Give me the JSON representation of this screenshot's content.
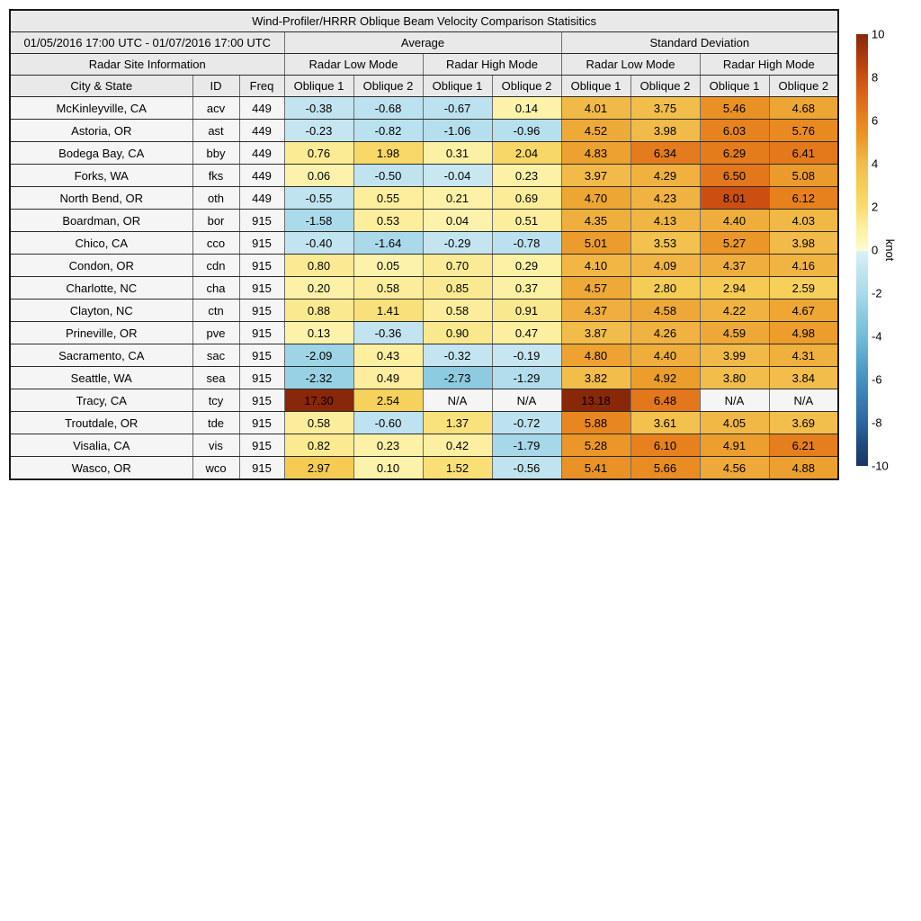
{
  "chart_data": {
    "type": "heatmap",
    "title": "Wind-Profiler/HRRR Oblique Beam Velocity Comparison Statisitics",
    "date_range": "01/05/2016 17:00 UTC - 01/07/2016 17:00 UTC",
    "group_headers": {
      "average": "Average",
      "std": "Standard Deviation",
      "site_info": "Radar Site Information",
      "low_mode": "Radar Low Mode",
      "high_mode": "Radar High Mode"
    },
    "column_headers": {
      "city": "City & State",
      "id": "ID",
      "freq": "Freq",
      "oblique1": "Oblique 1",
      "oblique2": "Oblique 2"
    },
    "value_columns": [
      "avg-low-oblique1",
      "avg-low-oblique2",
      "avg-high-oblique1",
      "avg-high-oblique2",
      "std-low-oblique1",
      "std-low-oblique2",
      "std-high-oblique1",
      "std-high-oblique2"
    ],
    "na_label": "N/A",
    "rows": [
      {
        "city": "McKinleyville, CA",
        "id": "acv",
        "freq": "449",
        "values": [
          "-0.38",
          "-0.68",
          "-0.67",
          "0.14",
          "4.01",
          "3.75",
          "5.46",
          "4.68"
        ]
      },
      {
        "city": "Astoria, OR",
        "id": "ast",
        "freq": "449",
        "values": [
          "-0.23",
          "-0.82",
          "-1.06",
          "-0.96",
          "4.52",
          "3.98",
          "6.03",
          "5.76"
        ]
      },
      {
        "city": "Bodega Bay, CA",
        "id": "bby",
        "freq": "449",
        "values": [
          "0.76",
          "1.98",
          "0.31",
          "2.04",
          "4.83",
          "6.34",
          "6.29",
          "6.41"
        ]
      },
      {
        "city": "Forks, WA",
        "id": "fks",
        "freq": "449",
        "values": [
          "0.06",
          "-0.50",
          "-0.04",
          "0.23",
          "3.97",
          "4.29",
          "6.50",
          "5.08"
        ]
      },
      {
        "city": "North Bend, OR",
        "id": "oth",
        "freq": "449",
        "values": [
          "-0.55",
          "0.55",
          "0.21",
          "0.69",
          "4.70",
          "4.23",
          "8.01",
          "6.12"
        ]
      },
      {
        "city": "Boardman, OR",
        "id": "bor",
        "freq": "915",
        "values": [
          "-1.58",
          "0.53",
          "0.04",
          "0.51",
          "4.35",
          "4.13",
          "4.40",
          "4.03"
        ]
      },
      {
        "city": "Chico, CA",
        "id": "cco",
        "freq": "915",
        "values": [
          "-0.40",
          "-1.64",
          "-0.29",
          "-0.78",
          "5.01",
          "3.53",
          "5.27",
          "3.98"
        ]
      },
      {
        "city": "Condon, OR",
        "id": "cdn",
        "freq": "915",
        "values": [
          "0.80",
          "0.05",
          "0.70",
          "0.29",
          "4.10",
          "4.09",
          "4.37",
          "4.16"
        ]
      },
      {
        "city": "Charlotte, NC",
        "id": "cha",
        "freq": "915",
        "values": [
          "0.20",
          "0.58",
          "0.85",
          "0.37",
          "4.57",
          "2.80",
          "2.94",
          "2.59"
        ]
      },
      {
        "city": "Clayton, NC",
        "id": "ctn",
        "freq": "915",
        "values": [
          "0.88",
          "1.41",
          "0.58",
          "0.91",
          "4.37",
          "4.58",
          "4.22",
          "4.67"
        ]
      },
      {
        "city": "Prineville, OR",
        "id": "pve",
        "freq": "915",
        "values": [
          "0.13",
          "-0.36",
          "0.90",
          "0.47",
          "3.87",
          "4.26",
          "4.59",
          "4.98"
        ]
      },
      {
        "city": "Sacramento, CA",
        "id": "sac",
        "freq": "915",
        "values": [
          "-2.09",
          "0.43",
          "-0.32",
          "-0.19",
          "4.80",
          "4.40",
          "3.99",
          "4.31"
        ]
      },
      {
        "city": "Seattle, WA",
        "id": "sea",
        "freq": "915",
        "values": [
          "-2.32",
          "0.49",
          "-2.73",
          "-1.29",
          "3.82",
          "4.92",
          "3.80",
          "3.84"
        ]
      },
      {
        "city": "Tracy, CA",
        "id": "tcy",
        "freq": "915",
        "values": [
          "17.30",
          "2.54",
          "N/A",
          "N/A",
          "13.18",
          "6.48",
          "N/A",
          "N/A"
        ]
      },
      {
        "city": "Troutdale, OR",
        "id": "tde",
        "freq": "915",
        "values": [
          "0.58",
          "-0.60",
          "1.37",
          "-0.72",
          "5.88",
          "3.61",
          "4.05",
          "3.69"
        ]
      },
      {
        "city": "Visalia, CA",
        "id": "vis",
        "freq": "915",
        "values": [
          "0.82",
          "0.23",
          "0.42",
          "-1.79",
          "5.28",
          "6.10",
          "4.91",
          "6.21"
        ]
      },
      {
        "city": "Wasco, OR",
        "id": "wco",
        "freq": "915",
        "values": [
          "2.97",
          "0.10",
          "1.52",
          "-0.56",
          "5.41",
          "5.66",
          "4.56",
          "4.88"
        ]
      }
    ],
    "colorbar": {
      "unit": "knot",
      "min": -10,
      "max": 10,
      "ticks": [
        10,
        8,
        6,
        4,
        2,
        0,
        -2,
        -4,
        -6,
        -8,
        -10
      ],
      "colormap_stops": [
        [
          -10,
          "#1b3466"
        ],
        [
          -9,
          "#21497f"
        ],
        [
          -8,
          "#2c66a2"
        ],
        [
          -7,
          "#397bb1"
        ],
        [
          -6,
          "#4690c1"
        ],
        [
          -5,
          "#5aa7cd"
        ],
        [
          -4,
          "#74bcd8"
        ],
        [
          -3,
          "#8bcadf"
        ],
        [
          -2,
          "#a9daea"
        ],
        [
          -1,
          "#c2e4f0"
        ],
        [
          -0.08,
          "#dceff6"
        ],
        [
          0,
          "#fefce4"
        ],
        [
          0.08,
          "#fdf9c8"
        ],
        [
          1,
          "#fcf0a2"
        ],
        [
          2,
          "#f8dc6f"
        ],
        [
          3,
          "#f5cd55"
        ],
        [
          4,
          "#f2bc4a"
        ],
        [
          5,
          "#ec9e2d"
        ],
        [
          6,
          "#e8851e"
        ],
        [
          7,
          "#dd6a18"
        ],
        [
          8,
          "#cc5011"
        ],
        [
          9,
          "#ab3a0e"
        ],
        [
          10,
          "#892709"
        ]
      ]
    }
  }
}
